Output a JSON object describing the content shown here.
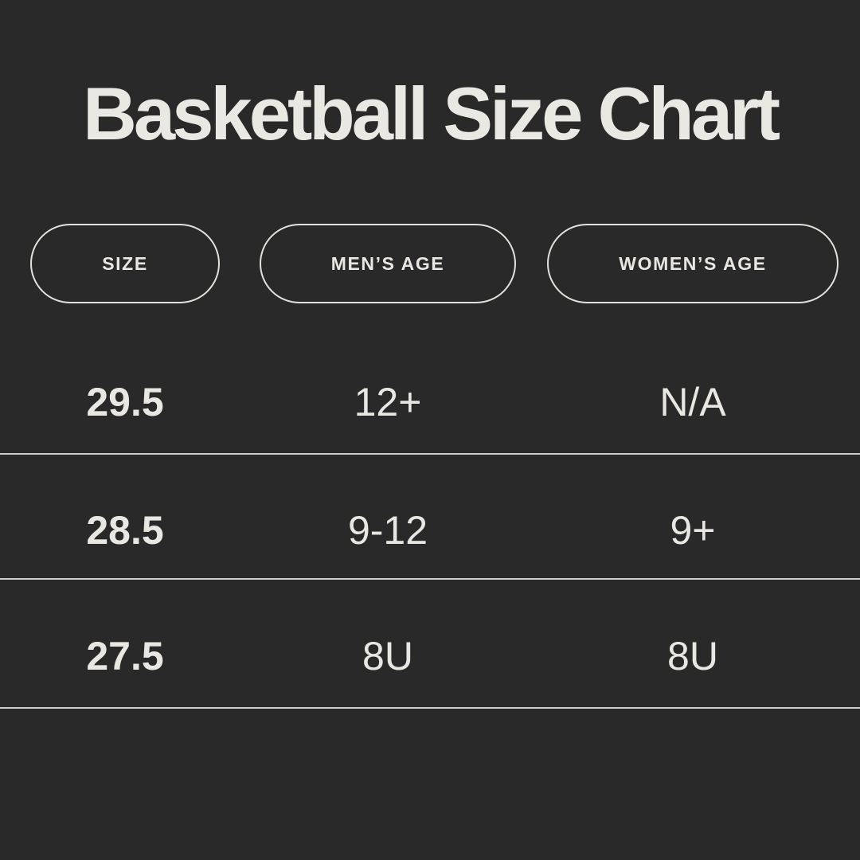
{
  "title": "Basketball Size Chart",
  "theme": {
    "background_color": "#2a2929",
    "text_color": "#eae8e2",
    "divider_color": "#cfcdc8",
    "pill_border_color": "#e3e1db"
  },
  "table": {
    "columns": [
      {
        "label": "SIZE"
      },
      {
        "label": "MEN’S AGE"
      },
      {
        "label": "WOMEN’S AGE"
      }
    ],
    "rows": [
      {
        "size": "29.5",
        "mens_age": "12+",
        "womens_age": "N/A"
      },
      {
        "size": "28.5",
        "mens_age": "9-12",
        "womens_age": "9+"
      },
      {
        "size": "27.5",
        "mens_age": "8U",
        "womens_age": "8U"
      }
    ]
  }
}
